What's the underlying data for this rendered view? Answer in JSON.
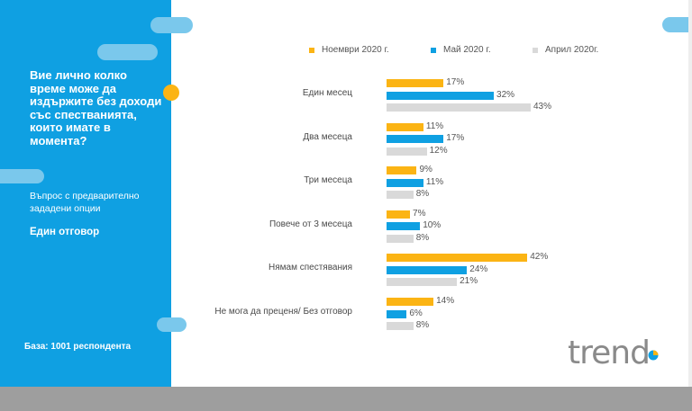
{
  "question": {
    "title": "Вие лично колко време може да издържите без доходи със спестванията, които имате в момента?",
    "type": "Въпрос с предварително зададени опции",
    "answer_mode": "Един отговор",
    "base": "База: 1001 респондента"
  },
  "brand": {
    "logo_text": "trend"
  },
  "colors": {
    "sidebar": "#0fa0e2",
    "accent_dot": "#fbb414",
    "pill": "#7ac8ec",
    "footer": "#9e9e9e"
  },
  "chart_data": {
    "type": "bar",
    "orientation": "horizontal",
    "categories": [
      "Един месец",
      "Два месеца",
      "Три месеца",
      "Повече от 3 месеца",
      "Нямам спестявания",
      "Не мога да преценя/ Без отговор"
    ],
    "series": [
      {
        "name": "Ноември 2020 г.",
        "color": "#fbb414",
        "values": [
          17,
          11,
          9,
          7,
          42,
          14
        ]
      },
      {
        "name": "Май 2020 г.",
        "color": "#0fa0e2",
        "values": [
          32,
          17,
          11,
          10,
          24,
          6
        ]
      },
      {
        "name": "Април 2020г.",
        "color": "#d9d9d9",
        "values": [
          43,
          12,
          8,
          8,
          21,
          8
        ]
      }
    ],
    "value_suffix": "%",
    "legend": "top",
    "grid": false,
    "title": "",
    "xlabel": "",
    "ylabel": ""
  }
}
